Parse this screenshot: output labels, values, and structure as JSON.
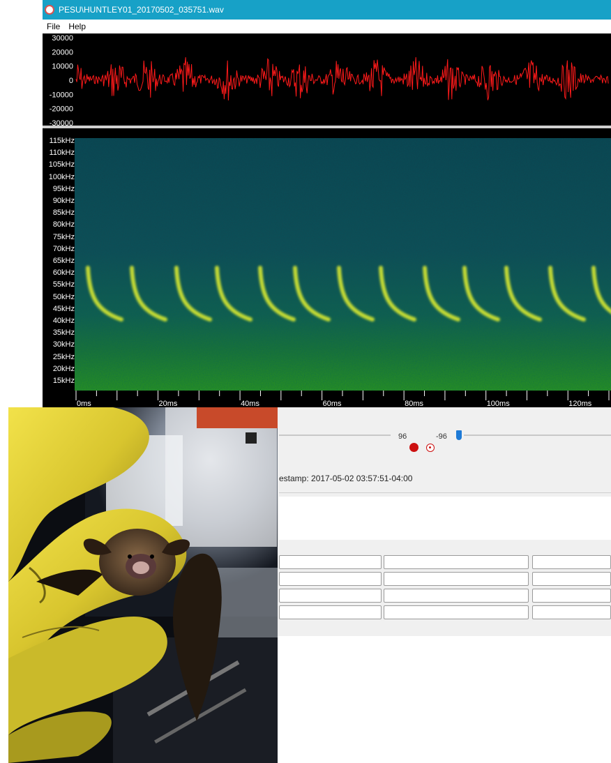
{
  "window": {
    "title": "PESU\\HUNTLEY01_20170502_035751.wav"
  },
  "menu": {
    "items": [
      "File",
      "Help"
    ]
  },
  "waveform": {
    "y_ticks": [
      "30000",
      "20000",
      "10000",
      "0",
      "-10000",
      "-20000",
      "-30000"
    ],
    "trace_color": "#ff1a1a"
  },
  "spectrogram": {
    "freq_labels": [
      "115kHz",
      "110kHz",
      "105kHz",
      "100kHz",
      "95kHz",
      "90kHz",
      "85kHz",
      "80kHz",
      "75kHz",
      "70kHz",
      "65kHz",
      "60kHz",
      "55kHz",
      "50kHz",
      "45kHz",
      "40kHz",
      "35kHz",
      "30kHz",
      "25kHz",
      "20kHz",
      "15kHz"
    ],
    "time_labels": [
      "0ms",
      "20ms",
      "40ms",
      "60ms",
      "80ms",
      "100ms",
      "120ms"
    ],
    "background_color": "#10434f",
    "call_color": "#d6e830"
  },
  "controls": {
    "gain_max": "96",
    "gain_min": "-96",
    "timestamp_text": "estamp: 2017-05-02 03:57:51-04:00"
  },
  "photo": {
    "description_icon": "bat-in-gloved-hand-photo"
  }
}
